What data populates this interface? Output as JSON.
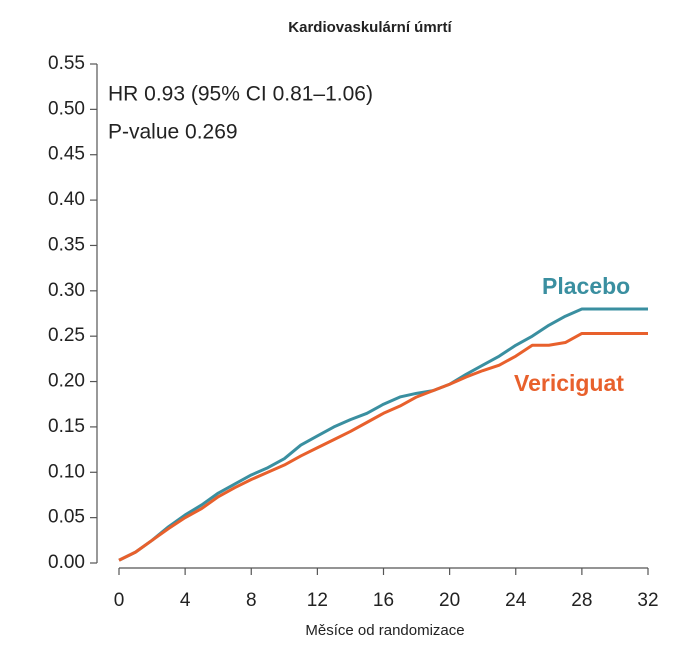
{
  "chart_data": {
    "type": "line",
    "title": "Kardiovaskulární úmrtí",
    "x_label": "Měsíce od randomizace",
    "annotations": [
      "HR 0.93 (95% CI 0.81–1.06)",
      "P-value 0.269"
    ],
    "x": [
      0,
      1,
      2,
      3,
      4,
      5,
      6,
      7,
      8,
      9,
      10,
      11,
      12,
      13,
      14,
      15,
      16,
      17,
      18,
      19,
      20,
      21,
      22,
      23,
      24,
      25,
      26,
      27,
      28,
      32
    ],
    "series": [
      {
        "name": "Placebo",
        "color": "#3a8fa0",
        "values": [
          0.003,
          0.012,
          0.025,
          0.04,
          0.053,
          0.064,
          0.077,
          0.087,
          0.097,
          0.105,
          0.115,
          0.13,
          0.14,
          0.15,
          0.158,
          0.165,
          0.175,
          0.183,
          0.187,
          0.19,
          0.197,
          0.208,
          0.218,
          0.228,
          0.24,
          0.25,
          0.262,
          0.272,
          0.28,
          0.28
        ]
      },
      {
        "name": "Vericiguat",
        "color": "#e8602c",
        "values": [
          0.003,
          0.012,
          0.025,
          0.038,
          0.05,
          0.06,
          0.073,
          0.083,
          0.092,
          0.1,
          0.108,
          0.118,
          0.127,
          0.136,
          0.145,
          0.155,
          0.165,
          0.173,
          0.183,
          0.19,
          0.197,
          0.205,
          0.212,
          0.218,
          0.228,
          0.24,
          0.24,
          0.243,
          0.253,
          0.253
        ]
      }
    ],
    "xlim": [
      0,
      32
    ],
    "xticks": [
      0,
      4,
      8,
      12,
      16,
      20,
      24,
      28,
      32
    ],
    "ylim": [
      0,
      0.55
    ],
    "yticks": [
      {
        "value": 0,
        "label": "0.00"
      },
      0.05,
      {
        "value": 0.1,
        "label": "0.10"
      },
      0.15,
      {
        "value": 0.2,
        "label": "0.20"
      },
      0.25,
      {
        "value": 0.3,
        "label": "0.30"
      },
      0.35,
      {
        "value": 0.4,
        "label": "0.40"
      },
      0.45,
      {
        "value": 0.5,
        "label": "0.50"
      },
      0.55
    ]
  }
}
